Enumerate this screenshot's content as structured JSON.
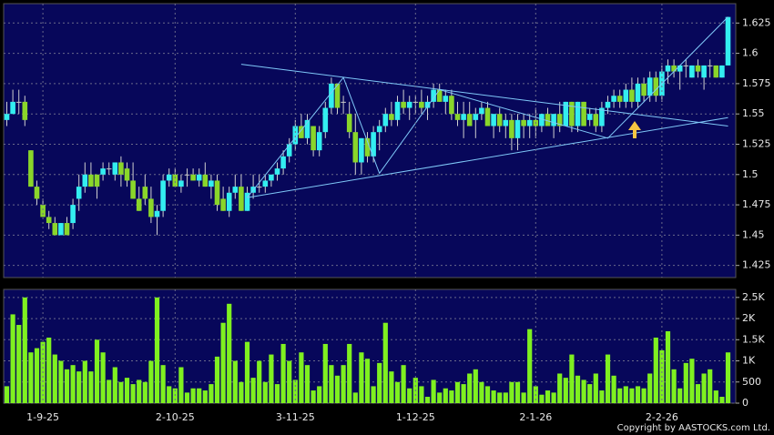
{
  "chart_data": [
    {
      "type": "candlestick",
      "up_color": "#33eef0",
      "down_color": "#8ad62a",
      "flat_color": "#c8c8c8",
      "line_color": "#7fc8f8",
      "ylim": [
        1.415,
        1.641
      ],
      "yticks": [
        1.425,
        1.45,
        1.475,
        1.5,
        1.525,
        1.55,
        1.575,
        1.6,
        1.625
      ],
      "grid": true,
      "ohlc": [
        [
          1.545,
          1.56,
          1.54,
          1.55
        ],
        [
          1.55,
          1.57,
          1.55,
          1.56
        ],
        [
          1.56,
          1.57,
          1.55,
          1.56
        ],
        [
          1.56,
          1.565,
          1.54,
          1.545
        ],
        [
          1.52,
          1.52,
          1.49,
          1.49
        ],
        [
          1.49,
          1.495,
          1.475,
          1.48
        ],
        [
          1.475,
          1.48,
          1.465,
          1.465
        ],
        [
          1.465,
          1.47,
          1.455,
          1.46
        ],
        [
          1.46,
          1.465,
          1.45,
          1.45
        ],
        [
          1.45,
          1.46,
          1.45,
          1.46
        ],
        [
          1.46,
          1.465,
          1.45,
          1.45
        ],
        [
          1.46,
          1.48,
          1.455,
          1.475
        ],
        [
          1.48,
          1.5,
          1.47,
          1.49
        ],
        [
          1.49,
          1.51,
          1.485,
          1.5
        ],
        [
          1.5,
          1.51,
          1.49,
          1.49
        ],
        [
          1.5,
          1.5,
          1.48,
          1.49
        ],
        [
          1.5,
          1.51,
          1.495,
          1.505
        ],
        [
          1.505,
          1.51,
          1.5,
          1.505
        ],
        [
          1.5,
          1.51,
          1.495,
          1.51
        ],
        [
          1.51,
          1.515,
          1.49,
          1.5
        ],
        [
          1.505,
          1.51,
          1.49,
          1.495
        ],
        [
          1.495,
          1.51,
          1.48,
          1.48
        ],
        [
          1.48,
          1.49,
          1.47,
          1.47
        ],
        [
          1.49,
          1.5,
          1.475,
          1.48
        ],
        [
          1.48,
          1.49,
          1.46,
          1.465
        ],
        [
          1.465,
          1.475,
          1.45,
          1.47
        ],
        [
          1.47,
          1.5,
          1.465,
          1.495
        ],
        [
          1.495,
          1.505,
          1.49,
          1.5
        ],
        [
          1.5,
          1.505,
          1.49,
          1.49
        ],
        [
          1.49,
          1.5,
          1.485,
          1.495
        ],
        [
          1.5,
          1.505,
          1.49,
          1.5
        ],
        [
          1.5,
          1.505,
          1.495,
          1.495
        ],
        [
          1.495,
          1.505,
          1.49,
          1.5
        ],
        [
          1.5,
          1.51,
          1.49,
          1.49
        ],
        [
          1.49,
          1.5,
          1.48,
          1.495
        ],
        [
          1.495,
          1.5,
          1.47,
          1.475
        ],
        [
          1.48,
          1.49,
          1.47,
          1.47
        ],
        [
          1.47,
          1.49,
          1.465,
          1.485
        ],
        [
          1.485,
          1.5,
          1.48,
          1.49
        ],
        [
          1.49,
          1.5,
          1.47,
          1.47
        ],
        [
          1.47,
          1.49,
          1.47,
          1.485
        ],
        [
          1.485,
          1.5,
          1.48,
          1.49
        ],
        [
          1.49,
          1.5,
          1.485,
          1.49
        ],
        [
          1.49,
          1.5,
          1.485,
          1.495
        ],
        [
          1.495,
          1.5,
          1.49,
          1.5
        ],
        [
          1.5,
          1.51,
          1.495,
          1.505
        ],
        [
          1.505,
          1.52,
          1.5,
          1.515
        ],
        [
          1.515,
          1.53,
          1.51,
          1.525
        ],
        [
          1.525,
          1.545,
          1.52,
          1.54
        ],
        [
          1.54,
          1.55,
          1.53,
          1.53
        ],
        [
          1.53,
          1.55,
          1.525,
          1.545
        ],
        [
          1.54,
          1.54,
          1.515,
          1.52
        ],
        [
          1.52,
          1.54,
          1.515,
          1.535
        ],
        [
          1.535,
          1.56,
          1.53,
          1.555
        ],
        [
          1.555,
          1.58,
          1.55,
          1.575
        ],
        [
          1.575,
          1.575,
          1.55,
          1.555
        ],
        [
          1.56,
          1.565,
          1.55,
          1.56
        ],
        [
          1.55,
          1.56,
          1.53,
          1.535
        ],
        [
          1.535,
          1.55,
          1.5,
          1.51
        ],
        [
          1.51,
          1.53,
          1.5,
          1.53
        ],
        [
          1.53,
          1.535,
          1.51,
          1.515
        ],
        [
          1.515,
          1.54,
          1.51,
          1.535
        ],
        [
          1.535,
          1.545,
          1.52,
          1.54
        ],
        [
          1.54,
          1.555,
          1.535,
          1.55
        ],
        [
          1.55,
          1.56,
          1.54,
          1.545
        ],
        [
          1.545,
          1.565,
          1.54,
          1.56
        ],
        [
          1.56,
          1.57,
          1.55,
          1.555
        ],
        [
          1.555,
          1.565,
          1.545,
          1.56
        ],
        [
          1.56,
          1.565,
          1.55,
          1.56
        ],
        [
          1.56,
          1.57,
          1.55,
          1.555
        ],
        [
          1.555,
          1.565,
          1.545,
          1.56
        ],
        [
          1.56,
          1.575,
          1.555,
          1.57
        ],
        [
          1.57,
          1.575,
          1.56,
          1.56
        ],
        [
          1.56,
          1.57,
          1.55,
          1.565
        ],
        [
          1.565,
          1.57,
          1.545,
          1.55
        ],
        [
          1.55,
          1.56,
          1.54,
          1.545
        ],
        [
          1.545,
          1.56,
          1.53,
          1.55
        ],
        [
          1.55,
          1.56,
          1.54,
          1.54
        ],
        [
          1.545,
          1.555,
          1.53,
          1.55
        ],
        [
          1.55,
          1.56,
          1.545,
          1.555
        ],
        [
          1.555,
          1.56,
          1.54,
          1.54
        ],
        [
          1.54,
          1.55,
          1.53,
          1.55
        ],
        [
          1.55,
          1.555,
          1.535,
          1.54
        ],
        [
          1.54,
          1.55,
          1.53,
          1.545
        ],
        [
          1.545,
          1.55,
          1.52,
          1.53
        ],
        [
          1.53,
          1.55,
          1.52,
          1.545
        ],
        [
          1.545,
          1.55,
          1.53,
          1.54
        ],
        [
          1.54,
          1.55,
          1.53,
          1.545
        ],
        [
          1.545,
          1.555,
          1.53,
          1.54
        ],
        [
          1.54,
          1.55,
          1.535,
          1.55
        ],
        [
          1.55,
          1.555,
          1.54,
          1.54
        ],
        [
          1.54,
          1.55,
          1.53,
          1.55
        ],
        [
          1.55,
          1.56,
          1.535,
          1.54
        ],
        [
          1.54,
          1.56,
          1.54,
          1.56
        ],
        [
          1.56,
          1.56,
          1.535,
          1.54
        ],
        [
          1.54,
          1.56,
          1.535,
          1.56
        ],
        [
          1.56,
          1.56,
          1.54,
          1.54
        ],
        [
          1.545,
          1.555,
          1.54,
          1.55
        ],
        [
          1.55,
          1.555,
          1.535,
          1.54
        ],
        [
          1.54,
          1.56,
          1.535,
          1.555
        ],
        [
          1.555,
          1.565,
          1.55,
          1.56
        ],
        [
          1.56,
          1.57,
          1.555,
          1.565
        ],
        [
          1.565,
          1.57,
          1.555,
          1.56
        ],
        [
          1.56,
          1.575,
          1.555,
          1.57
        ],
        [
          1.57,
          1.58,
          1.555,
          1.56
        ],
        [
          1.56,
          1.58,
          1.555,
          1.575
        ],
        [
          1.575,
          1.58,
          1.56,
          1.565
        ],
        [
          1.565,
          1.585,
          1.56,
          1.58
        ],
        [
          1.58,
          1.585,
          1.56,
          1.565
        ],
        [
          1.565,
          1.59,
          1.56,
          1.585
        ],
        [
          1.585,
          1.595,
          1.575,
          1.59
        ],
        [
          1.59,
          1.595,
          1.58,
          1.585
        ],
        [
          1.585,
          1.59,
          1.57,
          1.59
        ],
        [
          1.59,
          1.595,
          1.58,
          1.59
        ],
        [
          1.58,
          1.59,
          1.58,
          1.59
        ],
        [
          1.59,
          1.595,
          1.58,
          1.585
        ],
        [
          1.58,
          1.59,
          1.57,
          1.59
        ],
        [
          1.59,
          1.595,
          1.58,
          1.59
        ],
        [
          1.59,
          1.59,
          1.58,
          1.58
        ],
        [
          1.58,
          1.59,
          1.58,
          1.59
        ],
        [
          1.59,
          1.63,
          1.59,
          1.63
        ]
      ],
      "trendlines": [
        [
          [
            39,
            1.591
          ],
          [
            120,
            1.54
          ]
        ],
        [
          [
            40,
            1.481
          ],
          [
            120,
            1.547
          ]
        ],
        [
          [
            40,
            1.481
          ],
          [
            56,
            1.58
          ],
          [
            62,
            1.501
          ],
          [
            72,
            1.57
          ],
          [
            100,
            1.53
          ],
          [
            120,
            1.63
          ]
        ]
      ]
    },
    {
      "type": "bar",
      "color": "#7ff020",
      "ylim": [
        0,
        2690
      ],
      "yticks": [
        0,
        500,
        {
          "value": 1000,
          "label": "1K"
        },
        {
          "value": 1500,
          "label": "1.5K"
        },
        {
          "value": 2000,
          "label": "2K"
        },
        {
          "value": 2500,
          "label": "2.5K"
        }
      ],
      "grid": true,
      "categories": [
        null,
        null,
        null,
        null,
        null,
        null,
        "1-9-25",
        null,
        null,
        null,
        null,
        null,
        null,
        null,
        null,
        null,
        null,
        null,
        null,
        null,
        null,
        null,
        null,
        null,
        null,
        null,
        null,
        null,
        "2-10-25",
        null,
        null,
        null,
        null,
        null,
        null,
        null,
        null,
        null,
        null,
        null,
        null,
        null,
        null,
        null,
        null,
        null,
        null,
        null,
        "3-11-25",
        null,
        null,
        null,
        null,
        null,
        null,
        null,
        null,
        null,
        null,
        null,
        null,
        null,
        null,
        null,
        null,
        null,
        null,
        null,
        "1-12-25",
        null,
        null,
        null,
        null,
        null,
        null,
        null,
        null,
        null,
        null,
        null,
        null,
        null,
        null,
        null,
        null,
        null,
        null,
        null,
        "2-1-26",
        null,
        null,
        null,
        null,
        null,
        null,
        null,
        null,
        null,
        null,
        null,
        null,
        null,
        null,
        null,
        null,
        null,
        null,
        null,
        null,
        "2-2-26",
        null,
        null,
        null,
        null,
        null,
        null,
        null,
        null,
        null,
        null,
        null
      ],
      "values": [
        400,
        2100,
        1850,
        2500,
        1200,
        1300,
        1450,
        1550,
        1150,
        1000,
        800,
        900,
        750,
        1000,
        750,
        1500,
        1200,
        550,
        850,
        500,
        600,
        450,
        550,
        500,
        1000,
        2500,
        900,
        400,
        350,
        850,
        250,
        350,
        350,
        300,
        450,
        1100,
        1900,
        2350,
        1000,
        500,
        1450,
        600,
        1000,
        500,
        1150,
        450,
        1400,
        1000,
        550,
        1200,
        900,
        300,
        400,
        1400,
        900,
        650,
        900,
        1400,
        250,
        1200,
        1050,
        400,
        950,
        1900,
        750,
        500,
        900,
        350,
        600,
        400,
        150,
        550,
        250,
        350,
        300,
        500,
        450,
        700,
        800,
        500,
        400,
        300,
        250,
        250,
        500,
        500,
        250,
        1750,
        400,
        200,
        300,
        250,
        700,
        600,
        1150,
        650,
        550,
        450,
        700,
        300,
        1150,
        650,
        350,
        400,
        350,
        400,
        350,
        700,
        1550,
        1250,
        1700,
        800,
        350,
        950,
        1050,
        450,
        700,
        800,
        300,
        150,
        1200
      ]
    }
  ],
  "footer": "Copyright by AASTOCKS.com Ltd."
}
